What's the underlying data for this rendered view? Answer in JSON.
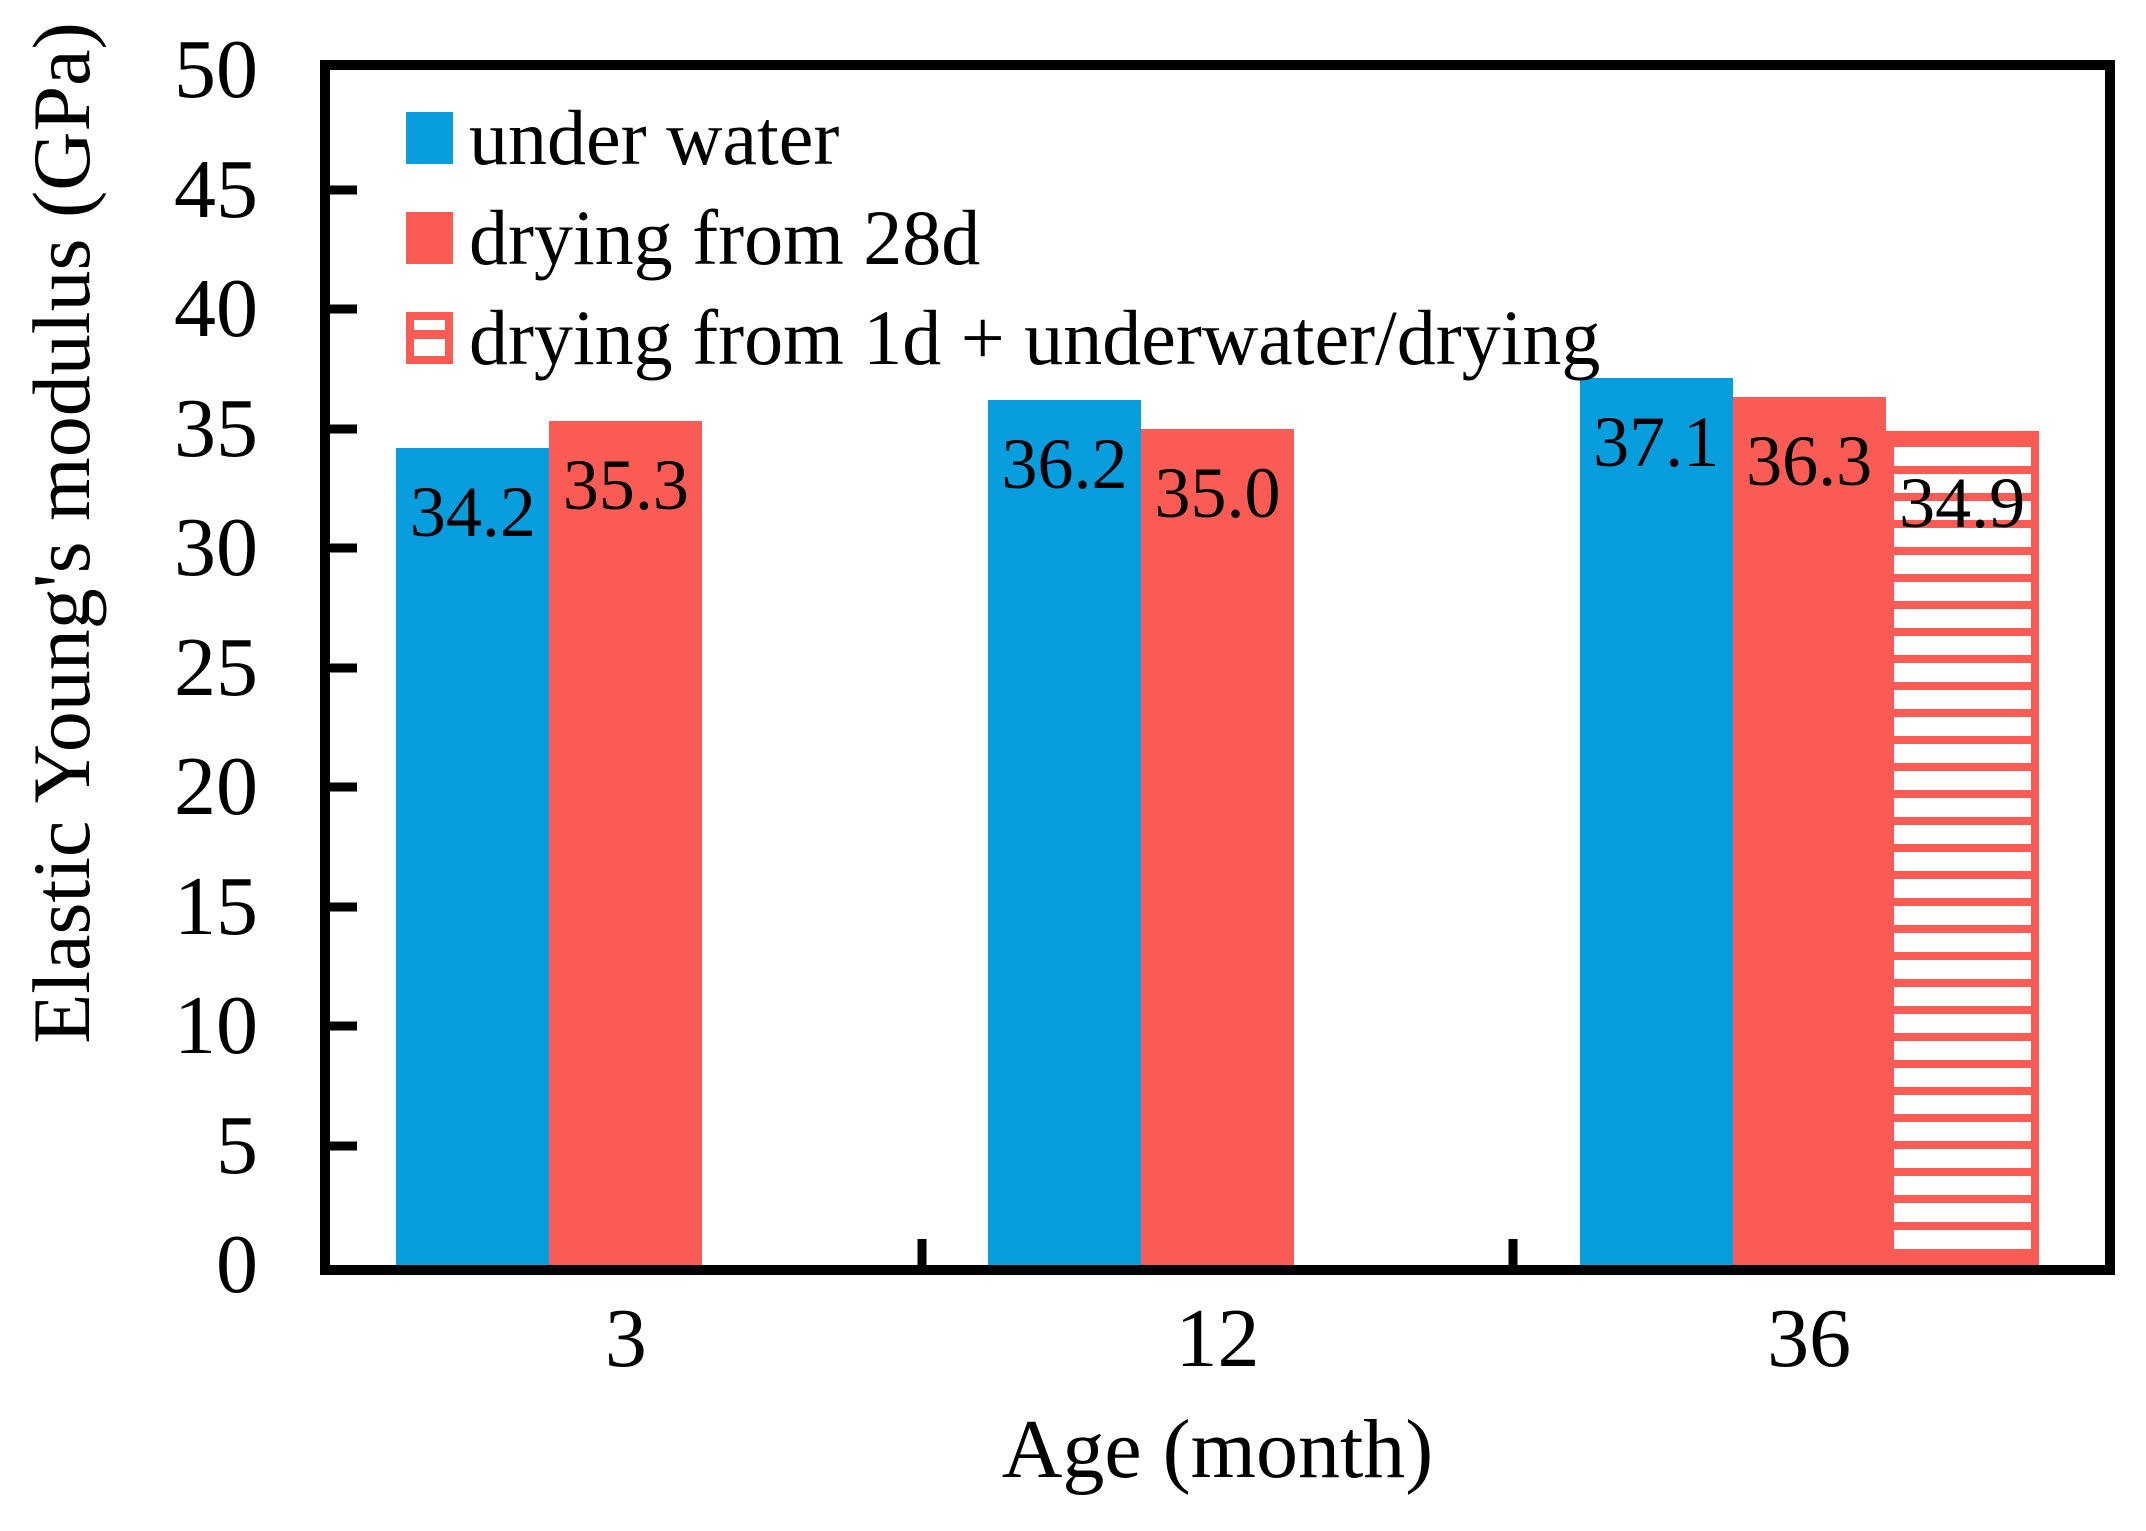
{
  "chart_data": {
    "type": "bar",
    "title": "",
    "xlabel": "Age (month)",
    "ylabel": "Elastic Young's modulus (GPa)",
    "categories": [
      "3",
      "12",
      "36"
    ],
    "series": [
      {
        "name": "under water",
        "style": "solid",
        "color": "#089EDE",
        "values": [
          34.2,
          36.2,
          37.1
        ],
        "value_labels": [
          "34.2",
          "36.2",
          "37.1"
        ]
      },
      {
        "name": "drying from 28d",
        "style": "solid",
        "color": "#FB5B55",
        "values": [
          35.3,
          35.0,
          36.3
        ],
        "value_labels": [
          "35.3",
          "35.0",
          "36.3"
        ]
      },
      {
        "name": "drying from 1d + underwater/drying",
        "style": "hatched-horizontal",
        "color": "#FB5B55",
        "values": [
          null,
          null,
          34.9
        ],
        "value_labels": [
          null,
          null,
          "34.9"
        ]
      }
    ],
    "ylim": [
      0,
      50
    ],
    "ytick_step": 5,
    "grid": false,
    "legend_position": "top-left",
    "axis_color": "#000000",
    "background_color": "#FFFFFF"
  }
}
